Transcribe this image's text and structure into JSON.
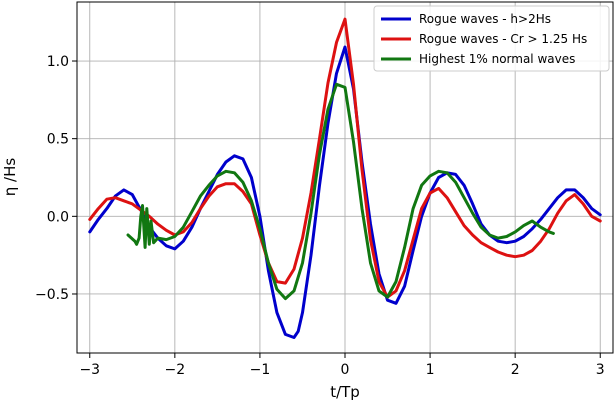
{
  "chart_data": {
    "type": "line",
    "xlabel": "t/Tp",
    "ylabel": "η /Hs",
    "xlim": [
      -3.15,
      3.15
    ],
    "ylim": [
      -0.88,
      1.38
    ],
    "xticks": [
      -3,
      -2,
      -1,
      0,
      1,
      2,
      3
    ],
    "yticks": [
      -0.5,
      0.0,
      0.5,
      1.0
    ],
    "xtick_labels": [
      "−3",
      "−2",
      "−1",
      "0",
      "1",
      "2",
      "3"
    ],
    "ytick_labels": [
      "−0.5",
      "0.0",
      "0.5",
      "1.0"
    ],
    "grid": true,
    "legend_position": "top-right",
    "series": [
      {
        "name": "Rogue waves - h>2Hs",
        "color": "#0000cc",
        "x": [
          -3.0,
          -2.9,
          -2.8,
          -2.7,
          -2.6,
          -2.5,
          -2.4,
          -2.3,
          -2.2,
          -2.1,
          -2.0,
          -1.9,
          -1.8,
          -1.7,
          -1.6,
          -1.5,
          -1.4,
          -1.3,
          -1.2,
          -1.1,
          -1.0,
          -0.9,
          -0.8,
          -0.7,
          -0.6,
          -0.55,
          -0.5,
          -0.4,
          -0.3,
          -0.2,
          -0.1,
          0.0,
          0.1,
          0.2,
          0.3,
          0.4,
          0.5,
          0.6,
          0.7,
          0.8,
          0.9,
          1.0,
          1.1,
          1.2,
          1.3,
          1.4,
          1.5,
          1.6,
          1.7,
          1.8,
          1.9,
          2.0,
          2.1,
          2.2,
          2.3,
          2.4,
          2.5,
          2.6,
          2.7,
          2.8,
          2.9,
          3.0
        ],
        "y": [
          -0.1,
          -0.02,
          0.05,
          0.13,
          0.17,
          0.14,
          0.04,
          -0.07,
          -0.14,
          -0.19,
          -0.21,
          -0.16,
          -0.07,
          0.05,
          0.16,
          0.27,
          0.35,
          0.39,
          0.37,
          0.25,
          0.0,
          -0.35,
          -0.62,
          -0.76,
          -0.78,
          -0.74,
          -0.62,
          -0.25,
          0.2,
          0.6,
          0.92,
          1.09,
          0.82,
          0.35,
          -0.05,
          -0.37,
          -0.54,
          -0.56,
          -0.45,
          -0.22,
          0.0,
          0.15,
          0.25,
          0.28,
          0.27,
          0.2,
          0.08,
          -0.05,
          -0.12,
          -0.16,
          -0.17,
          -0.16,
          -0.13,
          -0.08,
          -0.02,
          0.05,
          0.12,
          0.17,
          0.17,
          0.12,
          0.05,
          0.01
        ]
      },
      {
        "name": "Rogue waves - Cr > 1.25 Hs",
        "color": "#dd1111",
        "x": [
          -3.0,
          -2.9,
          -2.8,
          -2.7,
          -2.6,
          -2.5,
          -2.4,
          -2.3,
          -2.2,
          -2.1,
          -2.0,
          -1.9,
          -1.8,
          -1.7,
          -1.6,
          -1.5,
          -1.4,
          -1.3,
          -1.2,
          -1.1,
          -1.0,
          -0.9,
          -0.8,
          -0.7,
          -0.6,
          -0.5,
          -0.4,
          -0.3,
          -0.2,
          -0.1,
          0.0,
          0.1,
          0.2,
          0.3,
          0.4,
          0.5,
          0.6,
          0.7,
          0.8,
          0.9,
          1.0,
          1.1,
          1.2,
          1.3,
          1.4,
          1.5,
          1.6,
          1.7,
          1.8,
          1.9,
          2.0,
          2.1,
          2.2,
          2.3,
          2.4,
          2.5,
          2.6,
          2.7,
          2.8,
          2.9,
          3.0
        ],
        "y": [
          -0.02,
          0.05,
          0.11,
          0.12,
          0.1,
          0.08,
          0.04,
          0.0,
          -0.05,
          -0.09,
          -0.12,
          -0.1,
          -0.04,
          0.05,
          0.13,
          0.19,
          0.21,
          0.21,
          0.16,
          0.08,
          -0.12,
          -0.3,
          -0.42,
          -0.43,
          -0.34,
          -0.14,
          0.15,
          0.5,
          0.86,
          1.12,
          1.27,
          0.85,
          0.3,
          -0.15,
          -0.42,
          -0.52,
          -0.48,
          -0.35,
          -0.15,
          0.05,
          0.15,
          0.18,
          0.12,
          0.03,
          -0.06,
          -0.12,
          -0.17,
          -0.2,
          -0.23,
          -0.25,
          -0.26,
          -0.25,
          -0.22,
          -0.16,
          -0.08,
          0.02,
          0.1,
          0.14,
          0.08,
          0.0,
          -0.03
        ]
      },
      {
        "name": "Highest 1% normal waves",
        "color": "#117711",
        "x": [
          -2.55,
          -2.47,
          -2.45,
          -2.42,
          -2.4,
          -2.38,
          -2.35,
          -2.33,
          -2.3,
          -2.28,
          -2.25,
          -2.2,
          -2.1,
          -2.0,
          -1.9,
          -1.8,
          -1.7,
          -1.6,
          -1.5,
          -1.4,
          -1.3,
          -1.2,
          -1.1,
          -1.0,
          -0.9,
          -0.8,
          -0.7,
          -0.6,
          -0.5,
          -0.4,
          -0.3,
          -0.2,
          -0.1,
          0.0,
          0.1,
          0.2,
          0.3,
          0.4,
          0.5,
          0.6,
          0.7,
          0.8,
          0.9,
          1.0,
          1.1,
          1.2,
          1.3,
          1.4,
          1.5,
          1.6,
          1.7,
          1.8,
          1.9,
          2.0,
          2.1,
          2.2,
          2.3,
          2.4,
          2.45
        ],
        "y": [
          -0.12,
          -0.16,
          -0.18,
          -0.14,
          0.0,
          0.07,
          -0.2,
          0.05,
          -0.18,
          -0.03,
          -0.17,
          -0.14,
          -0.15,
          -0.13,
          -0.07,
          0.03,
          0.13,
          0.2,
          0.26,
          0.29,
          0.28,
          0.22,
          0.1,
          -0.08,
          -0.3,
          -0.47,
          -0.53,
          -0.48,
          -0.3,
          0.02,
          0.4,
          0.69,
          0.85,
          0.83,
          0.48,
          0.05,
          -0.3,
          -0.48,
          -0.52,
          -0.42,
          -0.2,
          0.05,
          0.2,
          0.26,
          0.29,
          0.28,
          0.22,
          0.12,
          0.02,
          -0.07,
          -0.12,
          -0.14,
          -0.13,
          -0.1,
          -0.06,
          -0.03,
          -0.07,
          -0.1,
          -0.11
        ]
      }
    ]
  }
}
